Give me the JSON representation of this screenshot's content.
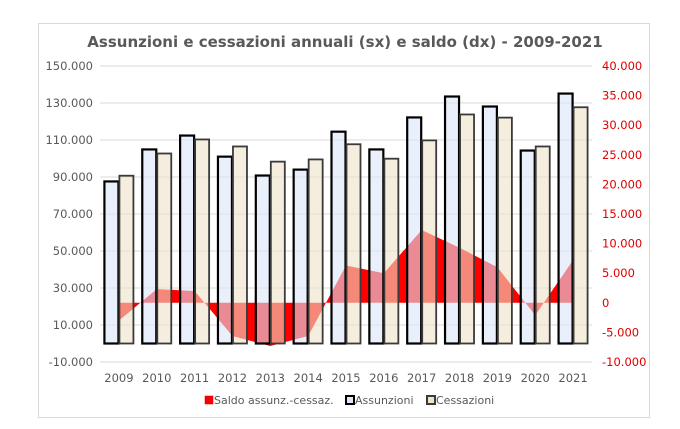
{
  "chart_data": {
    "type": "bar",
    "title": "Assunzioni e cessazioni annuali (sx) e saldo (dx) - 2009-2021",
    "categories": [
      "2009",
      "2010",
      "2011",
      "2012",
      "2013",
      "2014",
      "2015",
      "2016",
      "2017",
      "2018",
      "2019",
      "2020",
      "2021"
    ],
    "series": [
      {
        "name": "Saldo assunz.-cessaz.",
        "type": "area",
        "axis": "right",
        "color": "#ff0000",
        "values": [
          -3000,
          2300,
          2000,
          -5600,
          -7300,
          -5600,
          6300,
          5000,
          12300,
          9300,
          6000,
          -2100,
          7200
        ]
      },
      {
        "name": "Assunzioni",
        "type": "bar",
        "axis": "left",
        "color": "#dce6f8",
        "border": "#000000",
        "values": [
          87600,
          104900,
          112400,
          101000,
          90800,
          94000,
          114500,
          104900,
          122200,
          133500,
          128100,
          104300,
          135100
        ]
      },
      {
        "name": "Cessazioni",
        "type": "bar",
        "axis": "left",
        "color": "#efe3c8",
        "border": "#3a3a3a",
        "values": [
          90700,
          102700,
          110300,
          106500,
          98300,
          99500,
          107700,
          99900,
          109800,
          123800,
          122100,
          106500,
          127700
        ]
      }
    ],
    "y_left": {
      "ylim": [
        -10000,
        150000
      ],
      "ticks": [
        -10000,
        10000,
        30000,
        50000,
        70000,
        90000,
        110000,
        130000,
        150000
      ],
      "tick_labels": [
        "-10.000",
        "10.000",
        "30.000",
        "50.000",
        "70.000",
        "90.000",
        "110.000",
        "130.000",
        "150.000"
      ]
    },
    "y_right": {
      "ylim": [
        -10000,
        40000
      ],
      "ticks": [
        -10000,
        -5000,
        0,
        5000,
        10000,
        15000,
        20000,
        25000,
        30000,
        35000,
        40000
      ],
      "tick_labels": [
        "-10.000",
        "-5.000",
        "0",
        "5.000",
        "10.000",
        "15.000",
        "20.000",
        "25.000",
        "30.000",
        "35.000",
        "40.000"
      ],
      "color": "#e00000"
    },
    "xlabel": "",
    "ylabel": "",
    "grid": true,
    "legend": {
      "position": "bottom",
      "entries": [
        "Saldo assunz.-cessaz.",
        "Assunzioni",
        "Cessazioni"
      ]
    }
  }
}
